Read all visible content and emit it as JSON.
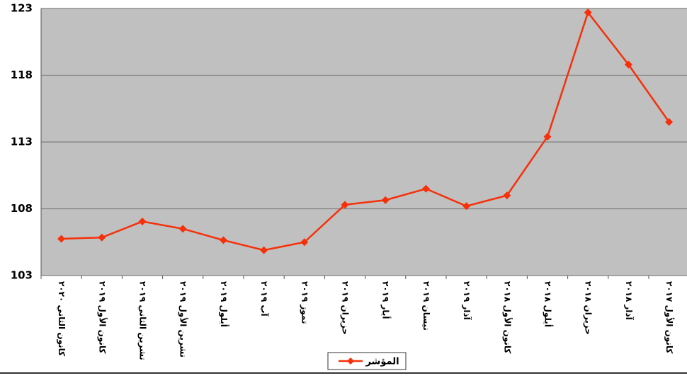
{
  "chart_data": {
    "type": "line",
    "categories": [
      "كانون الثاني ٢٠٢٠",
      "كانون الأول ٢٠١٩",
      "تشرين الثاني ٢٠١٩",
      "تشرين الأول ٢٠١٩",
      "أيلول ٢٠١٩",
      "آب ٢٠١٩",
      "تموز ٢٠١٩",
      "حزيران ٢٠١٩",
      "أيار ٢٠١٩",
      "نيسان ٢٠١٩",
      "آذار ٢٠١٩",
      "كانون الأول ٢٠١٨",
      "أيلول ٢٠١٨",
      "حزيران ٢٠١٨",
      "آذار ٢٠١٨",
      "كانون الأول ٢٠١٧"
    ],
    "series": [
      {
        "name": "المؤشر",
        "color": "#f5300a",
        "values": [
          105.75,
          105.85,
          107.05,
          106.5,
          105.65,
          104.9,
          105.5,
          108.3,
          108.65,
          109.5,
          108.2,
          109.0,
          113.4,
          122.7,
          118.8,
          114.5
        ]
      }
    ],
    "ylim": [
      103,
      123
    ],
    "yticks": [
      103,
      108,
      113,
      118,
      123
    ],
    "grid": true,
    "legend": "bottom"
  }
}
